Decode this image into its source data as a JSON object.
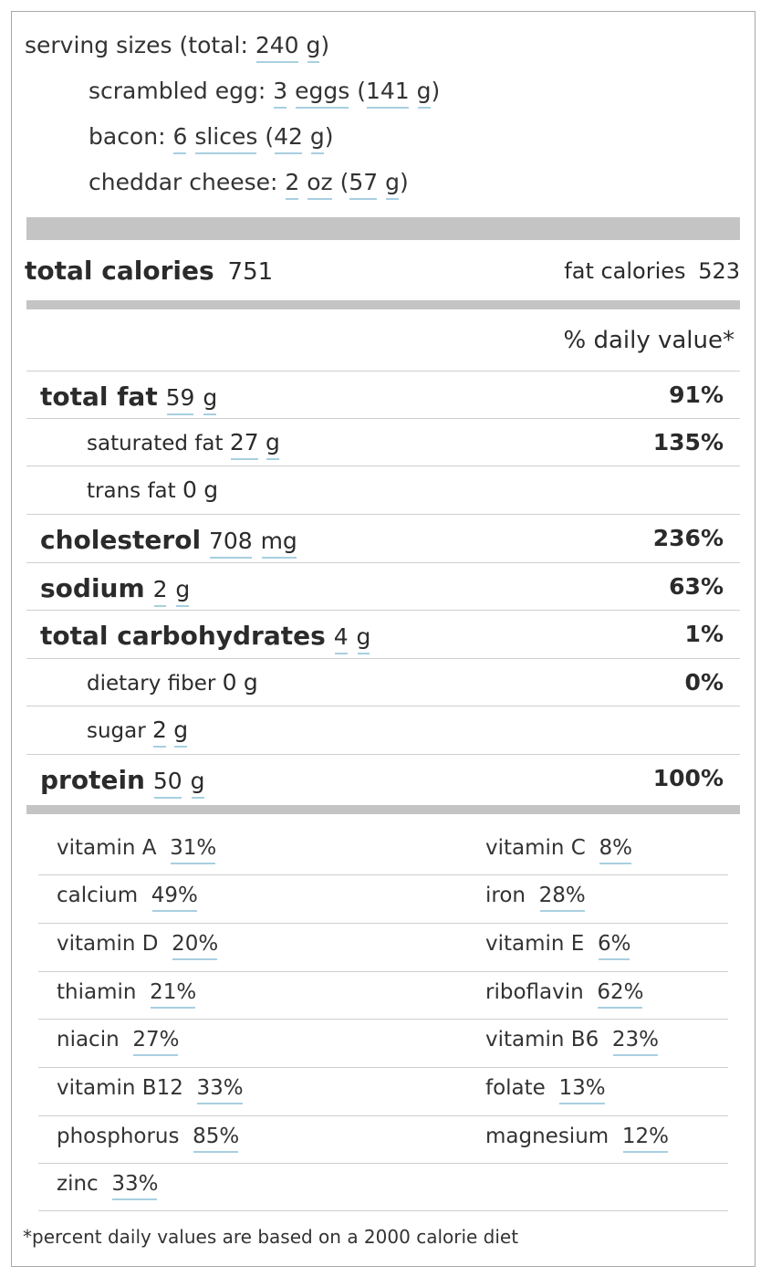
{
  "serving": {
    "title": "serving sizes (total:",
    "total_value": "240",
    "total_unit": "g",
    "items": [
      {
        "name": "scrambled egg:",
        "qty": "3",
        "unit": "eggs",
        "grams": "141",
        "gunit": "g"
      },
      {
        "name": "bacon:",
        "qty": "6",
        "unit": "slices",
        "grams": "42",
        "gunit": "g"
      },
      {
        "name": "cheddar cheese:",
        "qty": "2",
        "unit": "oz",
        "grams": "57",
        "gunit": "g"
      }
    ]
  },
  "calories": {
    "total_label": "total calories",
    "total_value": "751",
    "fat_label": "fat calories",
    "fat_value": "523"
  },
  "daily_value_header": "% daily value*",
  "nutrients": [
    {
      "name": "total fat",
      "value": "59",
      "unit": "g",
      "dv": "91%"
    },
    {
      "name": "saturated fat",
      "value": "27",
      "unit": "g",
      "dv": "135%"
    },
    {
      "name": "trans fat",
      "value": "0",
      "unit": "g",
      "dv": ""
    },
    {
      "name": "cholesterol",
      "value": "708",
      "unit": "mg",
      "dv": "236%"
    },
    {
      "name": "sodium",
      "value": "2",
      "unit": "g",
      "dv": "63%"
    },
    {
      "name": "total carbohydrates",
      "value": "4",
      "unit": "g",
      "dv": "1%"
    },
    {
      "name": "dietary fiber",
      "value": "0",
      "unit": "g",
      "dv": "0%"
    },
    {
      "name": "sugar",
      "value": "2",
      "unit": "g",
      "dv": ""
    },
    {
      "name": "protein",
      "value": "50",
      "unit": "g",
      "dv": "100%"
    }
  ],
  "vitamins": [
    {
      "name": "vitamin A",
      "value": "31%"
    },
    {
      "name": "vitamin C",
      "value": "8%"
    },
    {
      "name": "calcium",
      "value": "49%"
    },
    {
      "name": "iron",
      "value": "28%"
    },
    {
      "name": "vitamin D",
      "value": "20%"
    },
    {
      "name": "vitamin E",
      "value": "6%"
    },
    {
      "name": "thiamin",
      "value": "21%"
    },
    {
      "name": "riboflavin",
      "value": "62%"
    },
    {
      "name": "niacin",
      "value": "27%"
    },
    {
      "name": "vitamin B6",
      "value": "23%"
    },
    {
      "name": "vitamin B12",
      "value": "33%"
    },
    {
      "name": "folate",
      "value": "13%"
    },
    {
      "name": "phosphorus",
      "value": "85%"
    },
    {
      "name": "magnesium",
      "value": "12%"
    },
    {
      "name": "zinc",
      "value": "33%"
    }
  ],
  "footnote": "*percent daily values are based on a 2000 calorie diet"
}
